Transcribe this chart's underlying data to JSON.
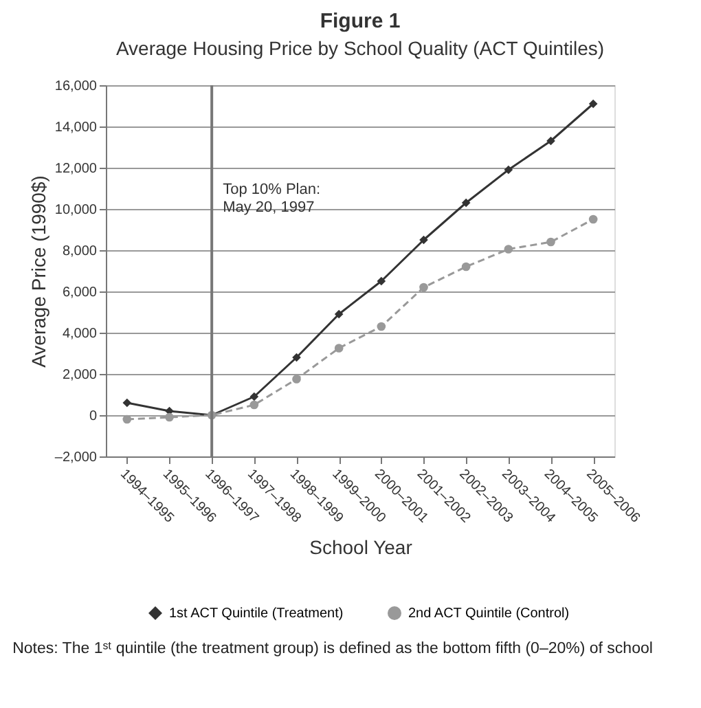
{
  "chart_data": {
    "type": "line",
    "title": "Figure 1",
    "subtitle": "Average Housing Price by School Quality (ACT Quintiles)",
    "xlabel": "School Year",
    "ylabel": "Average Price (1990$)",
    "categories": [
      "1994–1995",
      "1995–1996",
      "1996–1997",
      "1997–1998",
      "1998–1999",
      "1999–2000",
      "2000–2001",
      "2001–2002",
      "2002–2003",
      "2003–2004",
      "2004–2005",
      "2005–2006"
    ],
    "series": [
      {
        "name": "1st ACT Quintile (Treatment)",
        "color": "#333333",
        "marker": "diamond",
        "line_style": "solid",
        "values": [
          600,
          200,
          0,
          900,
          2800,
          4900,
          6500,
          8500,
          10300,
          11900,
          13300,
          15100
        ]
      },
      {
        "name": "2nd ACT Quintile (Control)",
        "color": "#999999",
        "marker": "circle",
        "line_style": "dashed",
        "values": [
          -200,
          -100,
          0,
          500,
          1750,
          3250,
          4300,
          6200,
          7200,
          8050,
          8400,
          9500
        ]
      }
    ],
    "ylim": [
      -2000,
      16000
    ],
    "yticks": [
      {
        "value": -2000,
        "label": "–2,000"
      },
      0,
      {
        "value": 2000,
        "label": "2,000"
      },
      {
        "value": 4000,
        "label": "4,000"
      },
      {
        "value": 6000,
        "label": "6,000"
      },
      {
        "value": 8000,
        "label": "8,000"
      },
      {
        "value": 10000,
        "label": "10,000"
      },
      {
        "value": 12000,
        "label": "12,000"
      },
      {
        "value": 14000,
        "label": "14,000"
      },
      {
        "value": 16000,
        "label": "16,000"
      }
    ],
    "grid": "y",
    "legend": "bottom",
    "ref_lines": [
      {
        "axis": "x",
        "value": "1996–1997",
        "label": "Top 10% Plan:\nMay 20, 1997",
        "color": "#777777"
      }
    ],
    "annotations": [
      "Notes: The 1ˢᵗ quintile (the treatment group) is defined as the bottom fifth (0–20%) of school"
    ]
  }
}
